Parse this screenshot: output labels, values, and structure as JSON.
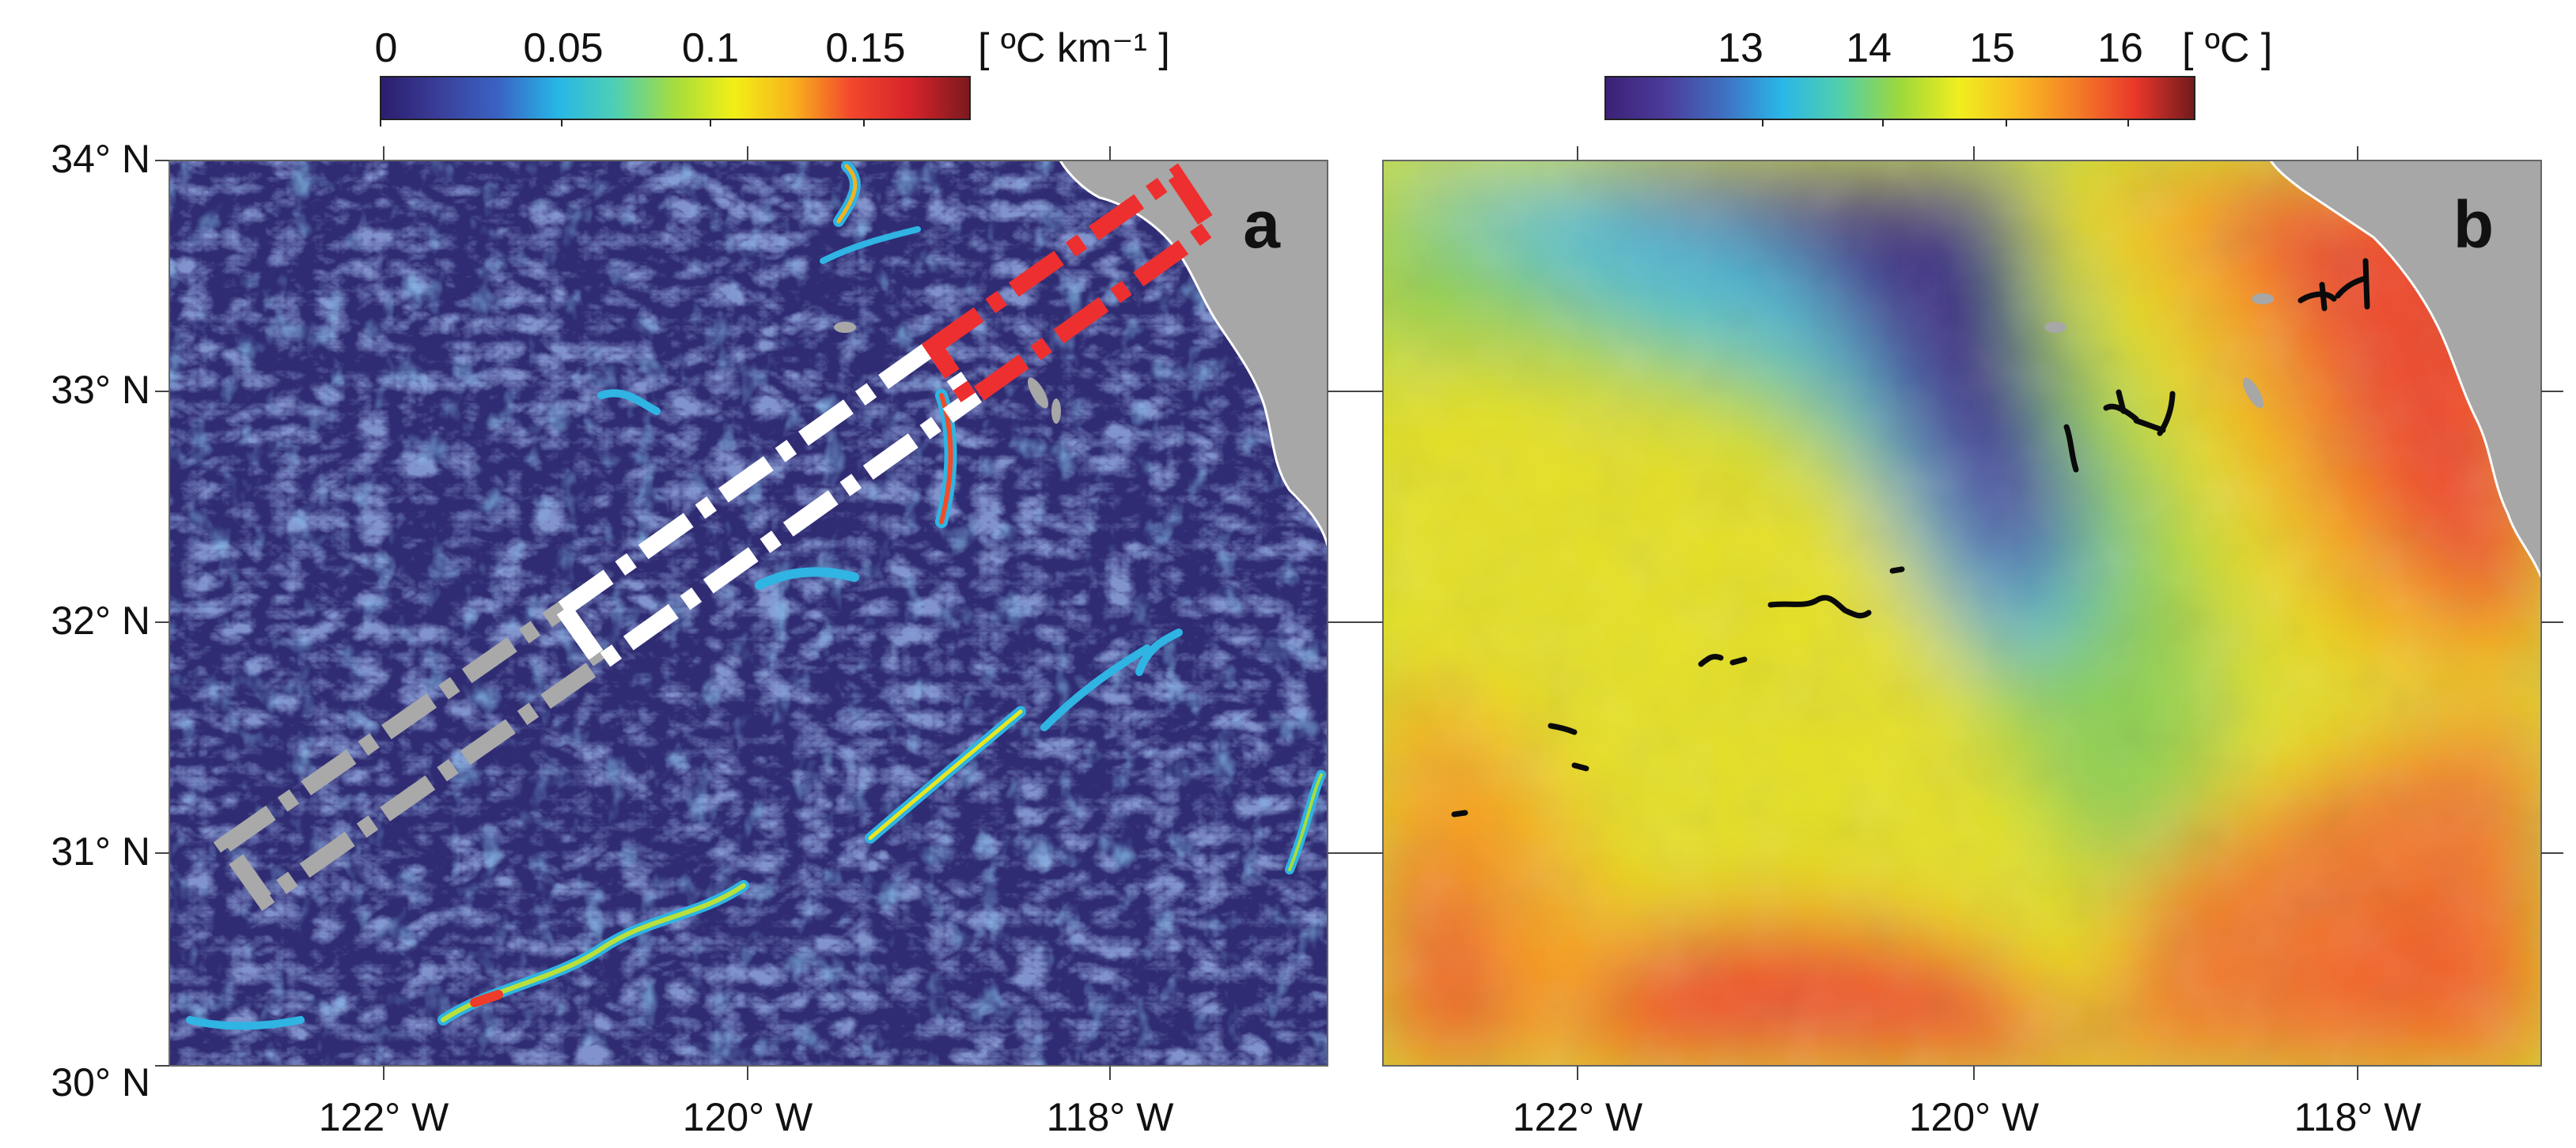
{
  "panels": {
    "a": {
      "letter": "a",
      "colorbar": {
        "ticks": [
          "0",
          "0.05",
          "0.1",
          "0.15"
        ],
        "unit": "[ ºC km⁻¹ ]",
        "colors": [
          "#2b1d6e",
          "#3a3f9a",
          "#3a63c4",
          "#27b6e6",
          "#4fd0b3",
          "#a6dd3c",
          "#f2ef16",
          "#f8b21c",
          "#f2462d",
          "#d5232a",
          "#7a1a1e"
        ]
      }
    },
    "b": {
      "letter": "b",
      "colorbar": {
        "ticks": [
          "13",
          "14",
          "15",
          "16"
        ],
        "unit": "[ ºC ]",
        "colors": [
          "#3b2176",
          "#4c3b9a",
          "#3f6fc1",
          "#2ab7e8",
          "#52cfaa",
          "#9ed83c",
          "#f0ee1e",
          "#f9bb22",
          "#f47d27",
          "#e9372a",
          "#6f1a1d"
        ]
      }
    }
  },
  "axes": {
    "lat_labels": [
      "34° N",
      "33° N",
      "32° N",
      "31° N",
      "30° N"
    ],
    "lon_labels": [
      "122° W",
      "120° W",
      "118° W"
    ]
  },
  "colors": {
    "land": "#a7a7a7",
    "gradient_background": "#302c73",
    "box_gray": "#a9a9a9",
    "box_white": "#ffffff",
    "box_red": "#ee2f2f"
  }
}
